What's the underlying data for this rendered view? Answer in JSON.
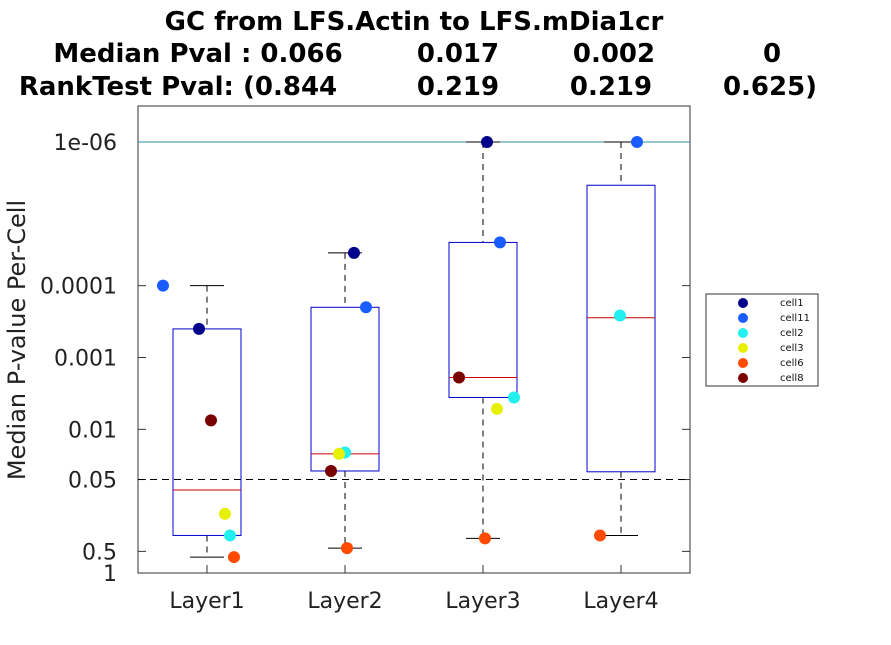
{
  "chart_data": {
    "type": "box",
    "title": "GC from LFS.Actin to LFS.mDia1cr",
    "subtitle_median": {
      "label": "Median Pval : 0.066",
      "values": [
        "0.017",
        "0.002",
        "0"
      ]
    },
    "subtitle_rank": {
      "label": "RankTest Pval: (0.844",
      "values": [
        "0.219",
        "0.219",
        "0.625)"
      ]
    },
    "ylabel": "Median P-value Per-Cell",
    "y_scale": "log-reversed",
    "y_range": [
      1e-06,
      1
    ],
    "y_ticks": [
      {
        "value": 1e-06,
        "label": "1e-06"
      },
      {
        "value": 0.0001,
        "label": "0.0001"
      },
      {
        "value": 0.001,
        "label": "0.001"
      },
      {
        "value": 0.01,
        "label": "0.01"
      },
      {
        "value": 0.05,
        "label": "0.05"
      },
      {
        "value": 0.5,
        "label": "0.5"
      },
      {
        "value": 1,
        "label": "1"
      }
    ],
    "reference_lines": [
      {
        "value": 1e-06,
        "style": "solid",
        "color": "#2a8fa6"
      },
      {
        "value": 0.05,
        "style": "dashed",
        "color": "#000000"
      }
    ],
    "categories": [
      "Layer1",
      "Layer2",
      "Layer3",
      "Layer4"
    ],
    "boxes": [
      {
        "whisker_low": 0.0001,
        "q1": 0.0004,
        "median": 0.07,
        "q3": 0.3,
        "whisker_high": 0.6
      },
      {
        "whisker_low": 3.5e-05,
        "q1": 0.0002,
        "median": 0.022,
        "q3": 0.038,
        "whisker_high": 0.45
      },
      {
        "whisker_low": 1e-06,
        "q1": 2.5e-05,
        "median": 0.0019,
        "q3": 0.0036,
        "whisker_high": 0.33
      },
      {
        "whisker_low": 1e-06,
        "q1": 4e-06,
        "median": 0.00028,
        "q3": 0.039,
        "whisker_high": 0.3
      }
    ],
    "series": [
      {
        "name": "cell1",
        "color": "#00008b",
        "values": [
          0.0004,
          3.5e-05,
          1e-06,
          null
        ]
      },
      {
        "name": "cell11",
        "color": "#1a5cff",
        "values": [
          0.0001,
          0.0002,
          2.5e-05,
          1e-06
        ]
      },
      {
        "name": "cell2",
        "color": "#22f0f0",
        "values": [
          0.3,
          0.021,
          0.0036,
          0.00026
        ]
      },
      {
        "name": "cell3",
        "color": "#e6f000",
        "values": [
          0.15,
          0.022,
          0.0052,
          null
        ]
      },
      {
        "name": "cell6",
        "color": "#ff4a00",
        "values": [
          0.6,
          0.45,
          0.33,
          0.3
        ]
      },
      {
        "name": "cell8",
        "color": "#7a0000",
        "values": [
          0.0075,
          0.038,
          0.0019,
          null
        ]
      }
    ],
    "legend": {
      "position": "right"
    }
  }
}
